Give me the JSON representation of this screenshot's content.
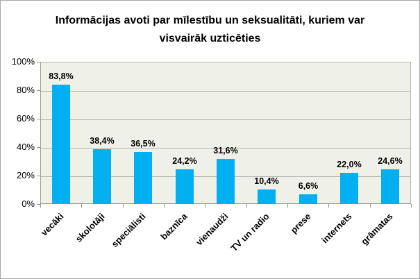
{
  "title": "Informācijas avoti par mīlestību un seksualitāti, kuriem var visvairāk uzticēties",
  "chart_data": {
    "type": "bar",
    "title": "Informācijas avoti par mīlestību un seksualitāti, kuriem var visvairāk uzticēties",
    "categories": [
      "vecāki",
      "skolotāji",
      "speciālisti",
      "baznīca",
      "vienaudži",
      "TV un radio",
      "prese",
      "internets",
      "grāmatas"
    ],
    "values": [
      83.8,
      38.4,
      36.5,
      24.2,
      31.6,
      10.4,
      6.6,
      22.0,
      24.6
    ],
    "value_labels": [
      "83,8%",
      "38,4%",
      "36,5%",
      "24,2%",
      "31,6%",
      "10,4%",
      "6,6%",
      "22,0%",
      "24,6%"
    ],
    "xlabel": "",
    "ylabel": "",
    "ylim": [
      0,
      100
    ],
    "ytick_step": 20,
    "ytick_labels": [
      "0%",
      "20%",
      "40%",
      "60%",
      "80%",
      "100%"
    ],
    "grid": true,
    "legend": false,
    "bar_color": "#00b0f0",
    "plot_bg": "#eff1e8",
    "gridline_color": "#b3b6ad",
    "axis_color": "#8f9289"
  }
}
